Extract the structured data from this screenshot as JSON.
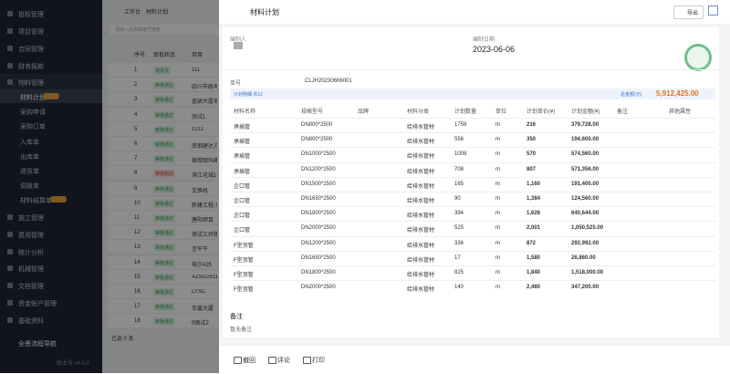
{
  "sidebar": {
    "items": [
      "投标管理",
      "项目管理",
      "合同管理",
      "财务报款",
      "物料管理"
    ],
    "sub_items": [
      "材料计划",
      "采购申请",
      "采购订单",
      "入库单",
      "出库单",
      "退货单",
      "调拨单",
      "材料结算单"
    ],
    "items_after": [
      "施工管理",
      "费用管理",
      "统计分析",
      "机械管理",
      "文档管理",
      "资金账户管理",
      "基础资料"
    ],
    "navigation": "全景流程导航",
    "version": "版本号 v4.0.0"
  },
  "list_page": {
    "breadcrumb": [
      "工作台",
      "材料计划"
    ],
    "search_placeholder": "请输入名称或编号搜索",
    "headers": [
      "序号",
      "审批状态",
      "项目"
    ],
    "rows": [
      [
        "1",
        "待提交",
        "111"
      ],
      [
        "2",
        "审批通过",
        "四川市政项目"
      ],
      [
        "3",
        "审批通过",
        "查颖大厦项目"
      ],
      [
        "4",
        "审批通过",
        "测试1"
      ],
      [
        "5",
        "审批通过",
        "1212"
      ],
      [
        "6",
        "审批通过",
        "南钢建达方"
      ],
      [
        "7",
        "审批通过",
        "珠穆朗玛峰"
      ],
      [
        "8",
        "审批驳回",
        "滨江花城18"
      ],
      [
        "9",
        "审批通过",
        "交换机"
      ],
      [
        "10",
        "审批通过",
        "新建工程-东"
      ],
      [
        "11",
        "审批通过",
        "唐阳项目"
      ],
      [
        "12",
        "审批通过",
        "测试三环路"
      ],
      [
        "13",
        "审批通过",
        "言午牛"
      ],
      [
        "14",
        "审批通过",
        "埃尔425"
      ],
      [
        "15",
        "审批通过",
        "AZSG25113"
      ],
      [
        "16",
        "审批通过",
        "LYSC"
      ],
      [
        "17",
        "审批通过",
        "车载大厦"
      ],
      [
        "18",
        "审批通过",
        "ff测试Z"
      ]
    ],
    "footer": "已选 0 条"
  },
  "drawer": {
    "title": "材料计划",
    "export": "导出",
    "preparer_label": "编制人",
    "date_label": "编制日期",
    "date": "2023-06-06",
    "number_label": "单号",
    "number": "CLJH20230606001",
    "detail_label": "计划明细 共12",
    "total_label": "总金额(元)",
    "total": "5,912,425.00",
    "table": {
      "headers": [
        "材料名称",
        "规格型号",
        "品牌",
        "材料分类",
        "计划数量",
        "单位",
        "计划单价(¥)",
        "计划金额(¥)",
        "备注",
        "其他属性"
      ],
      "rows": [
        [
          "承插管",
          "DN800*2500",
          "",
          "给排水管材",
          "1758",
          "m",
          "216",
          "379,728.00"
        ],
        [
          "承插管",
          "DN800*2500",
          "",
          "给排水管材",
          "556",
          "m",
          "350",
          "194,600.00"
        ],
        [
          "承插管",
          "DN1000*2500",
          "",
          "给排水管材",
          "1008",
          "m",
          "570",
          "574,560.00"
        ],
        [
          "承插管",
          "DN1200*2500",
          "",
          "给排水管材",
          "708",
          "m",
          "807",
          "571,356.00"
        ],
        [
          "企口管",
          "DN1500*2500",
          "",
          "给排水管材",
          "165",
          "m",
          "1,160",
          "191,400.00"
        ],
        [
          "企口管",
          "DN1650*2500",
          "",
          "给排水管材",
          "90",
          "m",
          "1,384",
          "124,560.00"
        ],
        [
          "企口管",
          "DN1800*2500",
          "",
          "给排水管材",
          "394",
          "m",
          "1,626",
          "640,644.00"
        ],
        [
          "企口管",
          "DN2000*2500",
          "",
          "给排水管材",
          "525",
          "m",
          "2,001",
          "1,050,525.00"
        ],
        [
          "F型顶管",
          "DN1200*2500",
          "",
          "给排水管材",
          "336",
          "m",
          "872",
          "292,992.00"
        ],
        [
          "F型顶管",
          "DN1650*2500",
          "",
          "给排水管材",
          "17",
          "m",
          "1,580",
          "26,860.00"
        ],
        [
          "F型顶管",
          "DN1800*2500",
          "",
          "给排水管材",
          "825",
          "m",
          "1,840",
          "1,518,000.00"
        ],
        [
          "F型顶管",
          "DN2000*2500",
          "",
          "给排水管材",
          "140",
          "m",
          "2,480",
          "347,200.00"
        ]
      ]
    },
    "remark_label": "备注",
    "remark": "暂无备注",
    "actions": [
      "撤回",
      "评论",
      "打印"
    ]
  }
}
